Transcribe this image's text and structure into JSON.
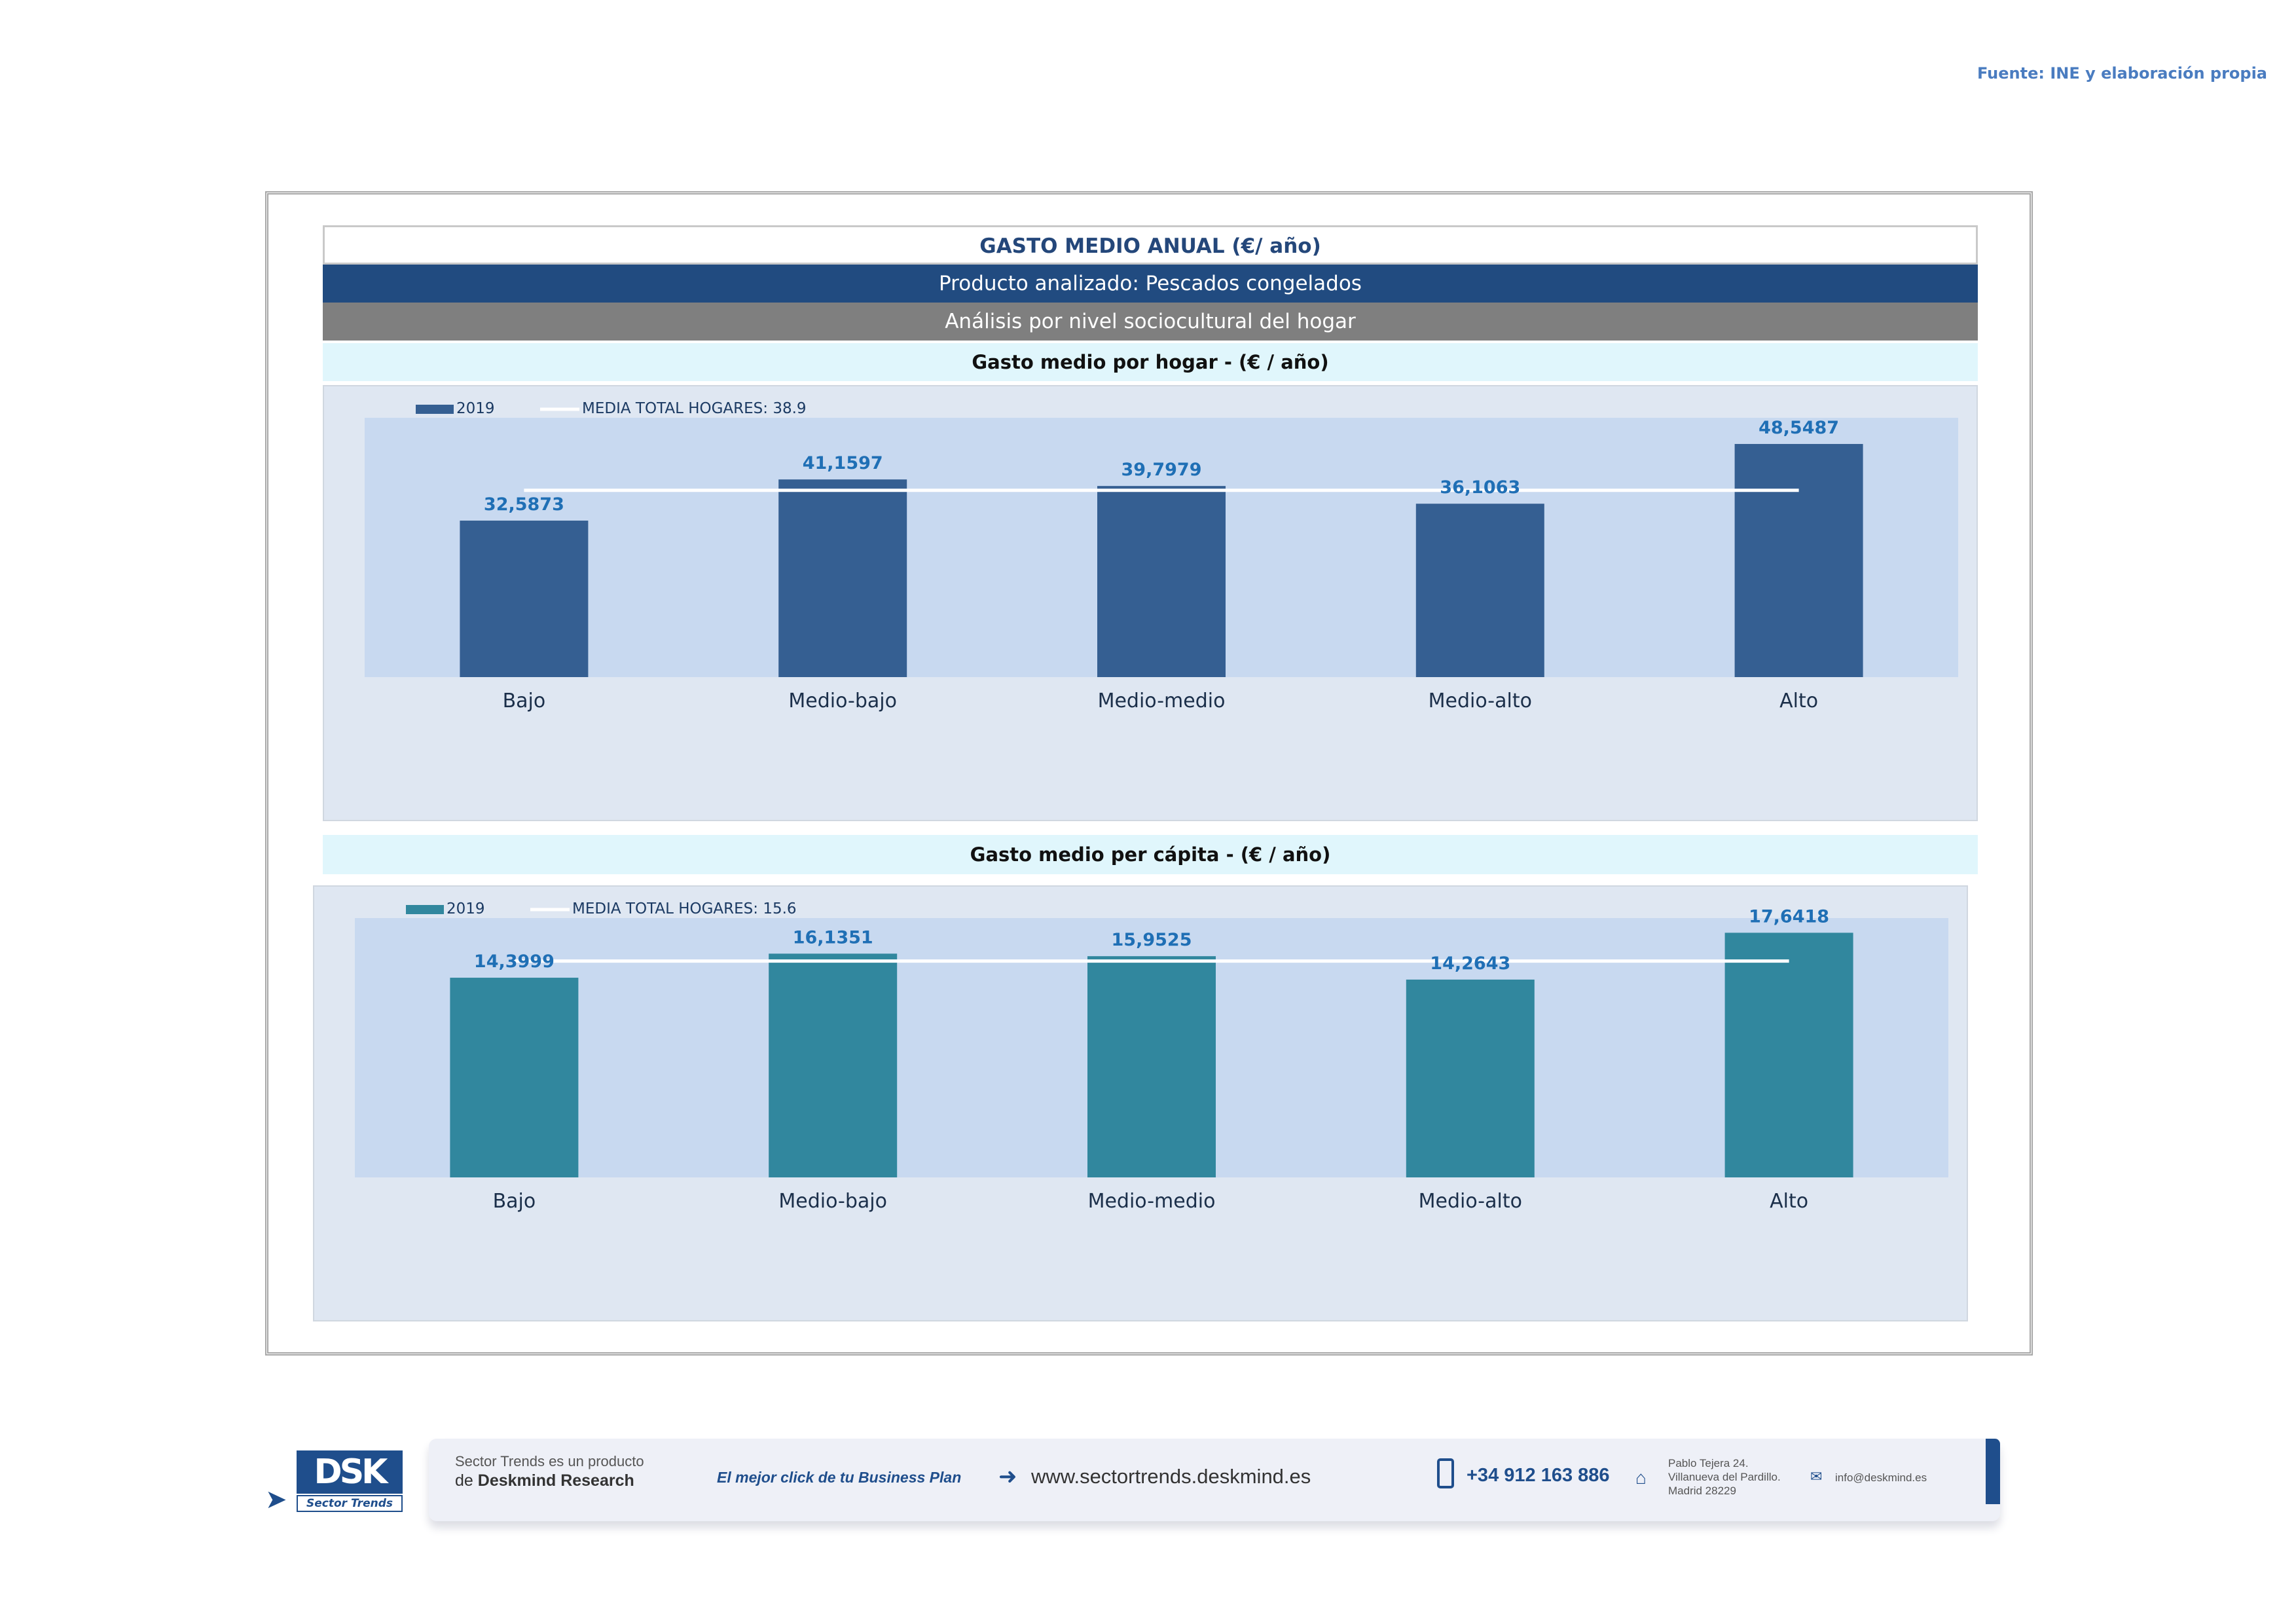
{
  "source": "Fuente: INE y elaboración propia",
  "header": {
    "title": "GASTO MEDIO ANUAL (€/ año)",
    "product": "Producto analizado: Pescados congelados",
    "analysis": "Análisis por nivel sociocultural del hogar",
    "subtitle1": "Gasto medio por hogar -  (€ / año)",
    "subtitle2": "Gasto medio per cápita -  (€ / año)"
  },
  "chart_data": [
    {
      "type": "bar",
      "title": "Gasto medio por hogar -  (€ / año)",
      "categories": [
        "Bajo",
        "Medio-bajo",
        "Medio-medio",
        "Medio-alto",
        "Alto"
      ],
      "series": [
        {
          "name": "2019",
          "values": [
            32.5873,
            41.1597,
            39.7979,
            36.1063,
            48.5487
          ]
        }
      ],
      "data_labels": [
        "32,5873",
        "41,1597",
        "39,7979",
        "36,1063",
        "48,5487"
      ],
      "reference_line": {
        "name": "MEDIA TOTAL  HOGARES:",
        "value": 38.9,
        "value_label": "38.9"
      },
      "ylim": [
        0,
        54
      ],
      "bar_color": "#355f92",
      "line_color": "#ffffff",
      "label_color": "#1f6fb5",
      "legend_position": "top-left",
      "grid": false
    },
    {
      "type": "bar",
      "title": "Gasto medio per cápita -  (€ / año)",
      "categories": [
        "Bajo",
        "Medio-bajo",
        "Medio-medio",
        "Medio-alto",
        "Alto"
      ],
      "series": [
        {
          "name": "2019",
          "values": [
            14.3999,
            16.1351,
            15.9525,
            14.2643,
            17.6418
          ]
        }
      ],
      "data_labels": [
        "14,3999",
        "16,1351",
        "15,9525",
        "14,2643",
        "17,6418"
      ],
      "reference_line": {
        "name": "MEDIA TOTAL  HOGARES:",
        "value": 15.6,
        "value_label": "15.6"
      },
      "ylim": [
        0,
        18.7
      ],
      "bar_color": "#31879e",
      "line_color": "#ffffff",
      "label_color": "#1f6fb5",
      "legend_position": "top-left",
      "grid": false
    }
  ],
  "footer": {
    "logo_text": "DSK",
    "logo_sub": "Sector Trends",
    "line1": "Sector Trends es un producto",
    "line2_prefix": "de",
    "line2_brand": "Deskmind Research",
    "slogan": "El mejor click de tu Business Plan",
    "website": "www.sectortrends.deskmind.es",
    "phone": "+34 912 163 886",
    "address1": "Pablo Tejera 24.",
    "address2": "Villanueva del Pardillo.",
    "address3": "Madrid 28229",
    "email": "info@deskmind.es",
    "icons": [
      "arrow-right-icon",
      "phone-icon",
      "home-icon",
      "mail-icon"
    ]
  }
}
